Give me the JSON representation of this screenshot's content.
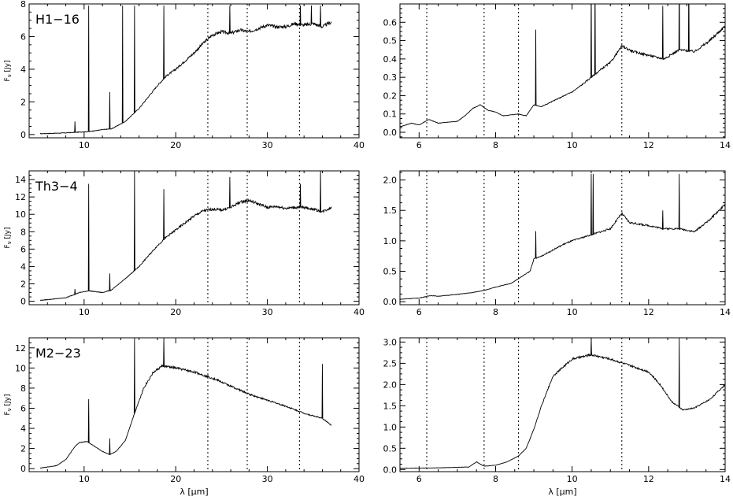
{
  "chart_data": [
    {
      "type": "line",
      "panel": "H1-16 full",
      "label": "H1−16",
      "xlim": [
        4,
        40
      ],
      "ylim": [
        -0.2,
        8
      ],
      "xticks": [
        10,
        20,
        30,
        40
      ],
      "yticks": [
        0,
        2,
        4,
        6,
        8
      ],
      "xlabel": "",
      "ylabel": "F",
      "dashed_lines": [
        23.5,
        27.8,
        33.5
      ],
      "continuum": [
        [
          5.2,
          0.05
        ],
        [
          8,
          0.1
        ],
        [
          9.5,
          0.15
        ],
        [
          10.5,
          0.18
        ],
        [
          12,
          0.3
        ],
        [
          13,
          0.35
        ],
        [
          14.5,
          0.8
        ],
        [
          16,
          1.6
        ],
        [
          17,
          2.3
        ],
        [
          18,
          3
        ],
        [
          19,
          3.6
        ],
        [
          20,
          4
        ],
        [
          21,
          4.5
        ],
        [
          22,
          5
        ],
        [
          23,
          5.6
        ],
        [
          24,
          6.1
        ],
        [
          25,
          6.3
        ],
        [
          26,
          6.2
        ],
        [
          27,
          6.4
        ],
        [
          28,
          6.3
        ],
        [
          29,
          6.5
        ],
        [
          30,
          6.7
        ],
        [
          31,
          6.6
        ],
        [
          32,
          6.6
        ],
        [
          33,
          6.8
        ],
        [
          34,
          6.7
        ],
        [
          35,
          6.8
        ],
        [
          36,
          6.6
        ],
        [
          37,
          6.9
        ]
      ],
      "lines": [
        [
          9,
          0.8
        ],
        [
          10.5,
          7.9
        ],
        [
          12.8,
          2.6
        ],
        [
          14.2,
          7.9
        ],
        [
          15.5,
          7.9
        ],
        [
          18.7,
          7.9
        ],
        [
          25.9,
          7.9
        ],
        [
          33.6,
          7.9
        ],
        [
          34.8,
          7.9
        ],
        [
          35.8,
          7.9
        ]
      ],
      "noise": 0.12
    },
    {
      "type": "line",
      "panel": "H1-16 zoom",
      "xlim": [
        5.5,
        14
      ],
      "ylim": [
        -0.03,
        0.7
      ],
      "xticks": [
        6,
        8,
        10,
        12,
        14
      ],
      "yticks": [
        0.0,
        0.1,
        0.2,
        0.3,
        0.4,
        0.5,
        0.6
      ],
      "xlabel": "",
      "ylabel": "",
      "dashed_lines": [
        6.2,
        7.7,
        8.6,
        11.3
      ],
      "continuum": [
        [
          5.5,
          0.03
        ],
        [
          5.8,
          0.05
        ],
        [
          6,
          0.04
        ],
        [
          6.25,
          0.07
        ],
        [
          6.5,
          0.05
        ],
        [
          7,
          0.06
        ],
        [
          7.2,
          0.09
        ],
        [
          7.4,
          0.13
        ],
        [
          7.6,
          0.15
        ],
        [
          7.8,
          0.12
        ],
        [
          8,
          0.11
        ],
        [
          8.2,
          0.09
        ],
        [
          8.6,
          0.1
        ],
        [
          8.8,
          0.09
        ],
        [
          9,
          0.15
        ],
        [
          9.2,
          0.14
        ],
        [
          9.5,
          0.17
        ],
        [
          10,
          0.22
        ],
        [
          10.2,
          0.25
        ],
        [
          10.5,
          0.3
        ],
        [
          10.8,
          0.35
        ],
        [
          11,
          0.38
        ],
        [
          11.3,
          0.47
        ],
        [
          11.6,
          0.44
        ],
        [
          12,
          0.42
        ],
        [
          12.4,
          0.4
        ],
        [
          12.8,
          0.45
        ],
        [
          13.2,
          0.44
        ],
        [
          13.6,
          0.5
        ],
        [
          14,
          0.58
        ]
      ],
      "lines": [
        [
          9.05,
          0.56
        ],
        [
          10.5,
          0.8
        ],
        [
          10.6,
          0.85
        ],
        [
          12.37,
          0.69
        ],
        [
          12.8,
          0.9
        ],
        [
          13.05,
          0.9
        ]
      ],
      "noise": 0.01
    },
    {
      "type": "line",
      "panel": "Th3-4 full",
      "label": "Th3−4",
      "xlim": [
        4,
        40
      ],
      "ylim": [
        -0.4,
        15
      ],
      "xticks": [
        10,
        20,
        30,
        40
      ],
      "yticks": [
        0,
        2,
        4,
        6,
        8,
        10,
        12,
        14
      ],
      "xlabel": "",
      "ylabel": "F",
      "dashed_lines": [
        23.5,
        27.8,
        33.5
      ],
      "continuum": [
        [
          5.2,
          0.1
        ],
        [
          8,
          0.4
        ],
        [
          9.5,
          1
        ],
        [
          10.5,
          1.2
        ],
        [
          12,
          1
        ],
        [
          13,
          1.3
        ],
        [
          14.5,
          2.6
        ],
        [
          16,
          4
        ],
        [
          17,
          5.2
        ],
        [
          18,
          6.4
        ],
        [
          19,
          7.4
        ],
        [
          20,
          8.2
        ],
        [
          21,
          9
        ],
        [
          22,
          9.8
        ],
        [
          23,
          10.4
        ],
        [
          24,
          10.6
        ],
        [
          25,
          10.5
        ],
        [
          26,
          10.8
        ],
        [
          27,
          11.4
        ],
        [
          28,
          11.6
        ],
        [
          29,
          11.2
        ],
        [
          30,
          10.8
        ],
        [
          31,
          10.9
        ],
        [
          32,
          10.7
        ],
        [
          33,
          10.8
        ],
        [
          34,
          10.8
        ],
        [
          35,
          10.6
        ],
        [
          36,
          10.3
        ],
        [
          37,
          10.8
        ]
      ],
      "lines": [
        [
          9,
          1.4
        ],
        [
          10.5,
          13.5
        ],
        [
          12.8,
          3.2
        ],
        [
          15.5,
          15
        ],
        [
          18.7,
          12.9
        ],
        [
          25.9,
          14.3
        ],
        [
          33.6,
          13.5
        ],
        [
          35.8,
          15
        ]
      ],
      "noise": 0.22
    },
    {
      "type": "line",
      "panel": "Th3-4 zoom",
      "xlim": [
        5.5,
        14
      ],
      "ylim": [
        -0.05,
        2.15
      ],
      "xticks": [
        6,
        8,
        10,
        12,
        14
      ],
      "yticks": [
        0.0,
        0.5,
        1.0,
        1.5,
        2.0
      ],
      "xlabel": "",
      "ylabel": "",
      "dashed_lines": [
        6.2,
        7.7,
        8.6,
        11.3
      ],
      "continuum": [
        [
          5.5,
          0.04
        ],
        [
          6,
          0.06
        ],
        [
          6.3,
          0.1
        ],
        [
          6.5,
          0.09
        ],
        [
          7,
          0.12
        ],
        [
          7.4,
          0.15
        ],
        [
          7.8,
          0.2
        ],
        [
          8,
          0.24
        ],
        [
          8.4,
          0.3
        ],
        [
          8.7,
          0.42
        ],
        [
          8.9,
          0.5
        ],
        [
          9,
          0.7
        ],
        [
          9.2,
          0.75
        ],
        [
          9.5,
          0.85
        ],
        [
          9.8,
          0.95
        ],
        [
          10,
          1
        ],
        [
          10.5,
          1.1
        ],
        [
          11,
          1.2
        ],
        [
          11.3,
          1.45
        ],
        [
          11.5,
          1.3
        ],
        [
          12,
          1.25
        ],
        [
          12.4,
          1.2
        ],
        [
          12.8,
          1.2
        ],
        [
          13.2,
          1.15
        ],
        [
          13.6,
          1.35
        ],
        [
          14,
          1.6
        ]
      ],
      "lines": [
        [
          9.05,
          1.16
        ],
        [
          10.5,
          2.1
        ],
        [
          10.55,
          2.1
        ],
        [
          12.37,
          1.5
        ],
        [
          12.8,
          2.1
        ]
      ],
      "noise": 0.025
    },
    {
      "type": "line",
      "panel": "M2-23 full",
      "label": "M2−23",
      "xlim": [
        4,
        40
      ],
      "ylim": [
        -0.3,
        13
      ],
      "xticks": [
        10,
        20,
        30,
        40
      ],
      "yticks": [
        0,
        2,
        4,
        6,
        8,
        10,
        12
      ],
      "xlabel": "λ [μm]",
      "ylabel": "F",
      "dashed_lines": [
        23.5,
        27.8,
        33.5
      ],
      "continuum": [
        [
          5.2,
          0.05
        ],
        [
          7,
          0.3
        ],
        [
          8,
          0.9
        ],
        [
          9,
          2.2
        ],
        [
          9.5,
          2.6
        ],
        [
          10.3,
          2.7
        ],
        [
          11,
          2.3
        ],
        [
          12,
          1.7
        ],
        [
          12.8,
          1.4
        ],
        [
          13.5,
          1.7
        ],
        [
          14.5,
          2.8
        ],
        [
          15.5,
          5.5
        ],
        [
          16.5,
          8
        ],
        [
          17.5,
          9.5
        ],
        [
          18.5,
          10.2
        ],
        [
          20,
          10
        ],
        [
          22,
          9.6
        ],
        [
          24,
          9
        ],
        [
          26,
          8.2
        ],
        [
          28,
          7.4
        ],
        [
          30,
          6.8
        ],
        [
          32,
          6.2
        ],
        [
          34,
          5.5
        ],
        [
          36,
          5
        ],
        [
          37,
          4.3
        ]
      ],
      "lines": [
        [
          10.5,
          6.9
        ],
        [
          12.8,
          3
        ],
        [
          15.5,
          13
        ],
        [
          18.7,
          13
        ],
        [
          36,
          10.4
        ]
      ],
      "noise": 0.15
    },
    {
      "type": "line",
      "panel": "M2-23 zoom",
      "xlim": [
        5.5,
        14
      ],
      "ylim": [
        -0.05,
        3.1
      ],
      "xticks": [
        6,
        8,
        10,
        12,
        14
      ],
      "yticks": [
        0.0,
        0.5,
        1.0,
        1.5,
        2.0,
        2.5,
        3.0
      ],
      "xlabel": "λ [μm]",
      "ylabel": "",
      "dashed_lines": [
        6.2,
        7.7,
        8.6,
        11.3
      ],
      "continuum": [
        [
          5.5,
          0.03
        ],
        [
          6.5,
          0.04
        ],
        [
          7.3,
          0.06
        ],
        [
          7.5,
          0.18
        ],
        [
          7.7,
          0.08
        ],
        [
          8,
          0.1
        ],
        [
          8.3,
          0.18
        ],
        [
          8.6,
          0.32
        ],
        [
          8.8,
          0.5
        ],
        [
          9,
          0.95
        ],
        [
          9.2,
          1.5
        ],
        [
          9.5,
          2.2
        ],
        [
          10,
          2.6
        ],
        [
          10.5,
          2.7
        ],
        [
          11,
          2.6
        ],
        [
          11.5,
          2.45
        ],
        [
          12,
          2.3
        ],
        [
          12.3,
          2
        ],
        [
          12.6,
          1.6
        ],
        [
          12.9,
          1.4
        ],
        [
          13.2,
          1.45
        ],
        [
          13.6,
          1.65
        ],
        [
          14,
          2
        ]
      ],
      "lines": [
        [
          10.5,
          3.1
        ],
        [
          12.37,
          1.9
        ],
        [
          12.8,
          3.1
        ]
      ],
      "noise": 0.03
    }
  ]
}
